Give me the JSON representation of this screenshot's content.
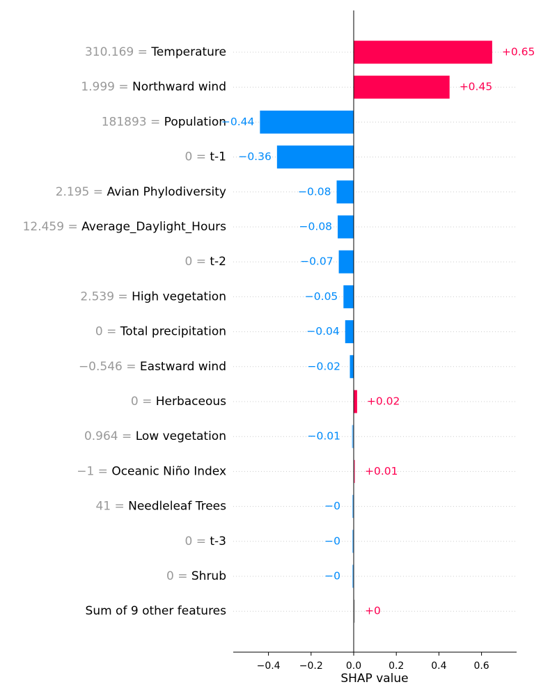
{
  "chart_data": {
    "type": "bar",
    "orientation": "horizontal",
    "xlabel": "SHAP value",
    "xlim": [
      -0.56,
      0.76
    ],
    "xticks": [
      -0.4,
      -0.2,
      0.0,
      0.2,
      0.4,
      0.6
    ],
    "xtick_labels": [
      "−0.4",
      "−0.2",
      "0.0",
      "0.2",
      "0.4",
      "0.6"
    ],
    "grid": "horizontal dotted per row",
    "colors": {
      "positive": "#ff0051",
      "negative": "#008bfb",
      "neutral": "#cccccc",
      "feature_value_text": "#999999"
    },
    "rows": [
      {
        "feature_value": "310.169",
        "feature": "Temperature",
        "shap": 0.65,
        "label": "+0.65"
      },
      {
        "feature_value": "1.999",
        "feature": "Northward wind",
        "shap": 0.45,
        "label": "+0.45"
      },
      {
        "feature_value": "181893",
        "feature": "Population",
        "shap": -0.44,
        "label": "−0.44"
      },
      {
        "feature_value": "0",
        "feature": "t-1",
        "shap": -0.36,
        "label": "−0.36"
      },
      {
        "feature_value": "2.195",
        "feature": "Avian Phylodiversity",
        "shap": -0.08,
        "label": "−0.08"
      },
      {
        "feature_value": "12.459",
        "feature": "Average_Daylight_Hours",
        "shap": -0.075,
        "label": "−0.08"
      },
      {
        "feature_value": "0",
        "feature": "t-2",
        "shap": -0.07,
        "label": "−0.07"
      },
      {
        "feature_value": "2.539",
        "feature": "High vegetation",
        "shap": -0.048,
        "label": "−0.05"
      },
      {
        "feature_value": "0",
        "feature": "Total precipitation",
        "shap": -0.04,
        "label": "−0.04"
      },
      {
        "feature_value": "−0.546",
        "feature": "Eastward wind",
        "shap": -0.018,
        "label": "−0.02"
      },
      {
        "feature_value": "0",
        "feature": "Herbaceous",
        "shap": 0.016,
        "label": "+0.02"
      },
      {
        "feature_value": "0.964",
        "feature": "Low vegetation",
        "shap": -0.008,
        "label": "−0.01"
      },
      {
        "feature_value": "−1",
        "feature": "Oceanic Niño Index",
        "shap": 0.006,
        "label": "+0.01"
      },
      {
        "feature_value": "41",
        "feature": "Needleleaf Trees",
        "shap": -0.003,
        "label": "−0"
      },
      {
        "feature_value": "0",
        "feature": "t-3",
        "shap": -0.003,
        "label": "−0"
      },
      {
        "feature_value": "0",
        "feature": "Shrub",
        "shap": -0.003,
        "label": "−0"
      },
      {
        "feature_value": "",
        "feature": "Sum of 9 other features",
        "shap": 0.004,
        "label": "+0"
      }
    ]
  }
}
